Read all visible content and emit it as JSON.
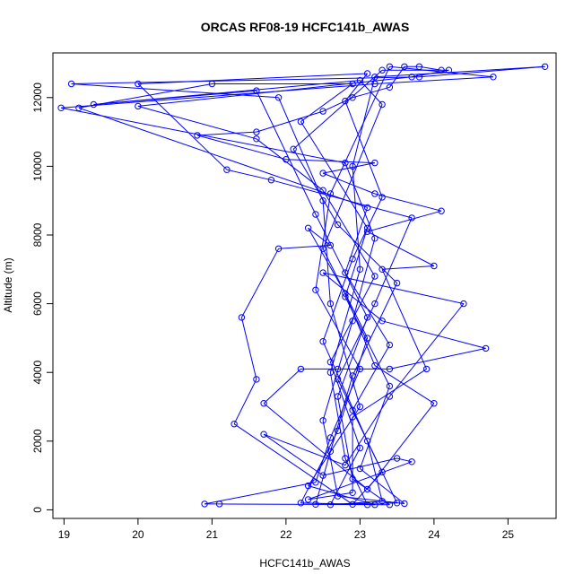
{
  "chart_data": {
    "type": "scatter",
    "title": "ORCAS RF08-19 HCFC141b_AWAS",
    "xlabel": "HCFC141b_AWAS",
    "ylabel": "Altitude (m)",
    "xlim": [
      18.85,
      25.65
    ],
    "ylim": [
      -250,
      13300
    ],
    "x_ticks": [
      "19",
      "20",
      "21",
      "22",
      "23",
      "24",
      "25"
    ],
    "y_ticks": [
      "0",
      "2000",
      "4000",
      "6000",
      "8000",
      "10000",
      "12000"
    ],
    "grid": false,
    "legend": "none",
    "series_color": "#0000ff",
    "series": [
      {
        "style": "points-and-lines",
        "points": [
          [
            23.1,
            150
          ],
          [
            22.8,
            1500
          ],
          [
            22.6,
            4000
          ],
          [
            23.0,
            7000
          ],
          [
            22.9,
            10000
          ],
          [
            23.2,
            12600
          ],
          [
            25.5,
            12900
          ],
          [
            23.8,
            12600
          ],
          [
            19.1,
            12400
          ],
          [
            21.9,
            12000
          ],
          [
            22.5,
            9000
          ],
          [
            22.6,
            6000
          ],
          [
            23.0,
            3000
          ],
          [
            22.3,
            700
          ],
          [
            23.2,
            150
          ],
          [
            22.2,
            200
          ],
          [
            22.7,
            2300
          ],
          [
            23.1,
            5000
          ],
          [
            22.5,
            7600
          ],
          [
            23.3,
            11800
          ],
          [
            23.0,
            12500
          ],
          [
            19.4,
            11800
          ],
          [
            21.6,
            12200
          ],
          [
            22.4,
            8600
          ],
          [
            23.1,
            5600
          ],
          [
            22.7,
            3300
          ],
          [
            22.9,
            900
          ],
          [
            23.4,
            150
          ],
          [
            21.1,
            170
          ],
          [
            20.9,
            170
          ],
          [
            22.4,
            800
          ],
          [
            22.6,
            2100
          ],
          [
            23.0,
            4100
          ],
          [
            22.4,
            6400
          ],
          [
            22.6,
            9200
          ],
          [
            23.4,
            12900
          ],
          [
            24.8,
            12600
          ],
          [
            23.2,
            12400
          ],
          [
            18.96,
            11700
          ],
          [
            22.8,
            10100
          ],
          [
            23.2,
            7900
          ],
          [
            22.9,
            5500
          ],
          [
            22.5,
            2600
          ],
          [
            22.7,
            400
          ],
          [
            23.6,
            180
          ],
          [
            23.0,
            1200
          ],
          [
            23.4,
            3600
          ],
          [
            22.8,
            6200
          ],
          [
            23.1,
            8200
          ],
          [
            22.2,
            11300
          ],
          [
            22.9,
            12400
          ],
          [
            21.0,
            12400
          ],
          [
            19.2,
            11700
          ],
          [
            23.1,
            8800
          ],
          [
            22.8,
            6900
          ],
          [
            23.4,
            4800
          ],
          [
            22.9,
            2900
          ],
          [
            23.5,
            200
          ],
          [
            22.4,
            160
          ],
          [
            22.6,
            1700
          ],
          [
            22.9,
            3900
          ],
          [
            23.5,
            6600
          ],
          [
            22.7,
            8300
          ],
          [
            22.1,
            10500
          ],
          [
            23.3,
            12800
          ],
          [
            24.2,
            12800
          ],
          [
            23.7,
            12600
          ],
          [
            20.0,
            11750
          ],
          [
            21.6,
            10800
          ],
          [
            22.5,
            9300
          ],
          [
            23.2,
            6800
          ],
          [
            22.6,
            4300
          ],
          [
            23.0,
            1800
          ],
          [
            22.6,
            150
          ],
          [
            23.3,
            250
          ],
          [
            23.1,
            2000
          ],
          [
            22.5,
            4900
          ],
          [
            22.9,
            7300
          ],
          [
            23.3,
            9100
          ],
          [
            22.8,
            11900
          ],
          [
            23.1,
            12700
          ],
          [
            20.0,
            12400
          ],
          [
            21.2,
            9900
          ],
          [
            21.8,
            9600
          ],
          [
            23.7,
            8500
          ],
          [
            23.2,
            6000
          ],
          [
            22.7,
            3800
          ],
          [
            23.3,
            1100
          ],
          [
            22.9,
            160
          ],
          [
            21.3,
            2500
          ],
          [
            21.6,
            3800
          ],
          [
            21.4,
            5600
          ],
          [
            21.9,
            7600
          ],
          [
            22.6,
            7700
          ],
          [
            22.3,
            8200
          ],
          [
            22.8,
            6300
          ],
          [
            23.2,
            4200
          ],
          [
            24.0,
            3100
          ],
          [
            23.1,
            600
          ],
          [
            21.7,
            3100
          ],
          [
            22.2,
            4100
          ],
          [
            22.7,
            4100
          ],
          [
            23.4,
            4100
          ],
          [
            24.7,
            4700
          ],
          [
            23.3,
            5500
          ],
          [
            22.5,
            6900
          ],
          [
            24.4,
            6000
          ],
          [
            23.4,
            3300
          ],
          [
            22.8,
            1300
          ],
          [
            21.7,
            2200
          ],
          [
            22.5,
            1000
          ],
          [
            23.5,
            1500
          ],
          [
            23.7,
            1400
          ],
          [
            22.3,
            300
          ],
          [
            22.9,
            500
          ],
          [
            22.9,
            2700
          ],
          [
            23.9,
            4100
          ],
          [
            23.3,
            7000
          ],
          [
            24.0,
            7100
          ],
          [
            23.1,
            8100
          ],
          [
            24.1,
            8700
          ],
          [
            23.2,
            9200
          ],
          [
            22.5,
            9800
          ],
          [
            23.2,
            10100
          ],
          [
            22.0,
            10200
          ],
          [
            20.8,
            10900
          ],
          [
            21.6,
            11000
          ],
          [
            22.5,
            11600
          ],
          [
            22.9,
            12000
          ],
          [
            23.4,
            12300
          ],
          [
            23.6,
            12900
          ],
          [
            23.8,
            12900
          ],
          [
            24.1,
            12800
          ]
        ]
      }
    ]
  }
}
